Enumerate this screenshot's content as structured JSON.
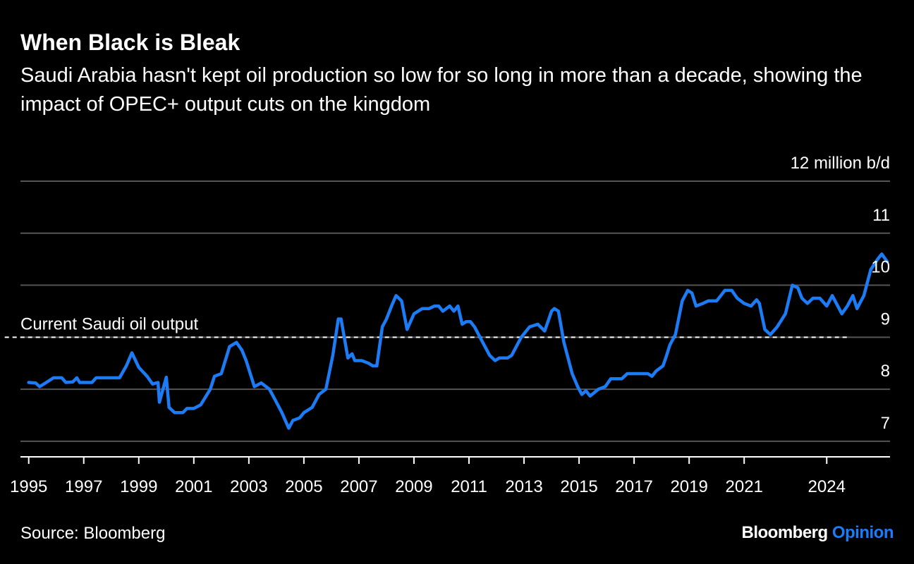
{
  "header": {
    "title": "When Black is Bleak",
    "subtitle": "Saudi Arabia hasn't kept oil production so low for so long in more than a decade, showing the impact of OPEC+ output cuts on the kingdom"
  },
  "footer": {
    "source": "Source: Bloomberg",
    "brand_main": "Bloomberg",
    "brand_accent": "Opinion"
  },
  "colors": {
    "background": "#000000",
    "line": "#1b7cf6",
    "grid": "#555555",
    "reference": "#ffffff",
    "accent": "#1b7cf6"
  },
  "chart_data": {
    "type": "line",
    "title": "When Black is Bleak",
    "ylabel": "12 million b/d",
    "ylim": [
      6.7,
      12
    ],
    "xlim": [
      1994.7,
      2026.3
    ],
    "y_ticks": [
      7,
      8,
      9,
      10,
      11,
      12
    ],
    "y_tick_labels": [
      "7",
      "8",
      "9",
      "10",
      "11",
      "12 million b/d"
    ],
    "x_ticks": [
      1995,
      1997,
      1999,
      2001,
      2003,
      2005,
      2007,
      2009,
      2011,
      2013,
      2015,
      2017,
      2019,
      2021,
      2024
    ],
    "x_tick_marks": [
      1995,
      1997,
      1999,
      2001,
      2003,
      2005,
      2007,
      2009,
      2011,
      2013,
      2015,
      2017,
      2019,
      2021,
      2024
    ],
    "grid": true,
    "reference_line": {
      "value": 9.0,
      "label": "Current Saudi oil output",
      "xrange": [
        1995,
        2026
      ]
    },
    "series": [
      {
        "color": "#1b7cf6",
        "points": [
          [
            1995.0,
            8.13
          ],
          [
            1995.25,
            8.12
          ],
          [
            1995.4,
            8.05
          ],
          [
            1995.7,
            8.15
          ],
          [
            1995.9,
            8.22
          ],
          [
            1996.2,
            8.22
          ],
          [
            1996.35,
            8.13
          ],
          [
            1996.6,
            8.14
          ],
          [
            1996.75,
            8.22
          ],
          [
            1996.85,
            8.13
          ],
          [
            1997.3,
            8.13
          ],
          [
            1997.45,
            8.22
          ],
          [
            1998.0,
            8.22
          ],
          [
            1998.3,
            8.22
          ],
          [
            1998.55,
            8.45
          ],
          [
            1998.75,
            8.7
          ],
          [
            1999.0,
            8.42
          ],
          [
            1999.3,
            8.25
          ],
          [
            1999.5,
            8.1
          ],
          [
            1999.7,
            8.13
          ],
          [
            1999.75,
            7.75
          ],
          [
            2000.0,
            8.23
          ],
          [
            2000.1,
            7.65
          ],
          [
            2000.3,
            7.55
          ],
          [
            2000.6,
            7.55
          ],
          [
            2000.75,
            7.63
          ],
          [
            2001.0,
            7.63
          ],
          [
            2001.25,
            7.7
          ],
          [
            2001.6,
            8.0
          ],
          [
            2001.75,
            8.25
          ],
          [
            2002.0,
            8.3
          ],
          [
            2002.3,
            8.82
          ],
          [
            2002.55,
            8.9
          ],
          [
            2002.75,
            8.75
          ],
          [
            2002.9,
            8.55
          ],
          [
            2003.2,
            8.05
          ],
          [
            2003.45,
            8.12
          ],
          [
            2003.75,
            8.0
          ],
          [
            2004.0,
            7.75
          ],
          [
            2004.2,
            7.55
          ],
          [
            2004.45,
            7.25
          ],
          [
            2004.6,
            7.4
          ],
          [
            2004.85,
            7.45
          ],
          [
            2005.0,
            7.55
          ],
          [
            2005.3,
            7.65
          ],
          [
            2005.55,
            7.9
          ],
          [
            2005.8,
            8.0
          ],
          [
            2006.05,
            8.65
          ],
          [
            2006.25,
            9.35
          ],
          [
            2006.35,
            9.35
          ],
          [
            2006.6,
            8.6
          ],
          [
            2006.75,
            8.68
          ],
          [
            2006.85,
            8.55
          ],
          [
            2007.1,
            8.55
          ],
          [
            2007.35,
            8.5
          ],
          [
            2007.5,
            8.45
          ],
          [
            2007.65,
            8.45
          ],
          [
            2007.85,
            9.2
          ],
          [
            2008.0,
            9.35
          ],
          [
            2008.2,
            9.62
          ],
          [
            2008.35,
            9.8
          ],
          [
            2008.55,
            9.7
          ],
          [
            2008.75,
            9.15
          ],
          [
            2009.0,
            9.45
          ],
          [
            2009.3,
            9.55
          ],
          [
            2009.55,
            9.55
          ],
          [
            2009.75,
            9.6
          ],
          [
            2009.9,
            9.6
          ],
          [
            2010.05,
            9.5
          ],
          [
            2010.3,
            9.6
          ],
          [
            2010.45,
            9.5
          ],
          [
            2010.6,
            9.6
          ],
          [
            2010.75,
            9.25
          ],
          [
            2010.9,
            9.3
          ],
          [
            2011.05,
            9.3
          ],
          [
            2011.2,
            9.2
          ],
          [
            2011.55,
            8.85
          ],
          [
            2011.75,
            8.65
          ],
          [
            2011.95,
            8.55
          ],
          [
            2012.1,
            8.6
          ],
          [
            2012.4,
            8.6
          ],
          [
            2012.55,
            8.65
          ],
          [
            2012.9,
            9.0
          ],
          [
            2013.2,
            9.2
          ],
          [
            2013.5,
            9.25
          ],
          [
            2013.75,
            9.12
          ],
          [
            2014.0,
            9.5
          ],
          [
            2014.1,
            9.55
          ],
          [
            2014.25,
            9.5
          ],
          [
            2014.45,
            8.9
          ],
          [
            2014.75,
            8.3
          ],
          [
            2014.95,
            8.05
          ],
          [
            2015.1,
            7.9
          ],
          [
            2015.25,
            7.97
          ],
          [
            2015.4,
            7.87
          ],
          [
            2015.7,
            8.0
          ],
          [
            2015.95,
            8.05
          ],
          [
            2016.15,
            8.2
          ],
          [
            2016.55,
            8.2
          ],
          [
            2016.65,
            8.25
          ],
          [
            2016.75,
            8.3
          ],
          [
            2017.05,
            8.3
          ],
          [
            2017.5,
            8.3
          ],
          [
            2017.65,
            8.25
          ],
          [
            2017.8,
            8.35
          ],
          [
            2018.05,
            8.45
          ],
          [
            2018.15,
            8.6
          ],
          [
            2018.3,
            8.85
          ],
          [
            2018.5,
            9.05
          ],
          [
            2018.75,
            9.7
          ],
          [
            2018.95,
            9.9
          ],
          [
            2019.1,
            9.85
          ],
          [
            2019.25,
            9.6
          ],
          [
            2019.5,
            9.65
          ],
          [
            2019.7,
            9.7
          ],
          [
            2020.0,
            9.7
          ],
          [
            2020.3,
            9.9
          ],
          [
            2020.55,
            9.9
          ],
          [
            2020.75,
            9.75
          ],
          [
            2021.0,
            9.65
          ],
          [
            2021.25,
            9.6
          ],
          [
            2021.45,
            9.72
          ],
          [
            2021.55,
            9.65
          ],
          [
            2021.75,
            9.15
          ],
          [
            2021.95,
            9.05
          ],
          [
            2022.2,
            9.2
          ],
          [
            2022.5,
            9.45
          ],
          [
            2022.75,
            10.0
          ],
          [
            2022.95,
            9.95
          ],
          [
            2023.1,
            9.75
          ],
          [
            2023.3,
            9.65
          ],
          [
            2023.5,
            9.75
          ],
          [
            2023.75,
            9.75
          ],
          [
            2024.0,
            9.6
          ],
          [
            2024.2,
            9.8
          ],
          [
            2024.4,
            9.6
          ],
          [
            2024.55,
            9.45
          ],
          [
            2024.75,
            9.6
          ],
          [
            2024.95,
            9.8
          ],
          [
            2025.1,
            9.55
          ],
          [
            2025.35,
            9.8
          ],
          [
            2025.6,
            10.3
          ],
          [
            2025.85,
            10.5
          ],
          [
            2026.0,
            10.6
          ],
          [
            2026.2,
            10.45
          ]
        ]
      }
    ]
  }
}
